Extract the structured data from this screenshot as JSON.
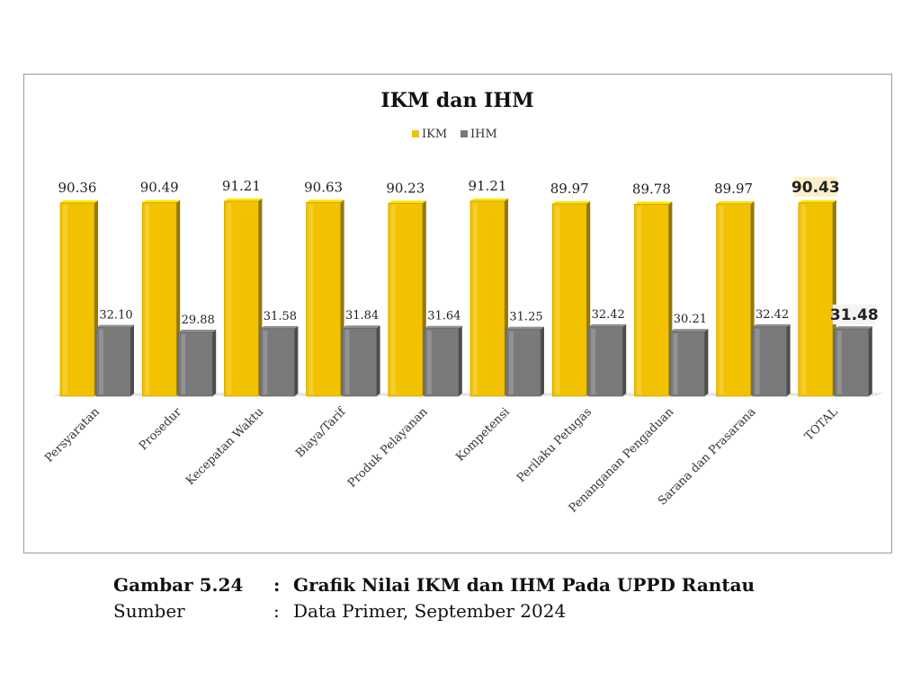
{
  "chart_data": {
    "type": "bar",
    "title": "IKM dan IHM",
    "categories": [
      "Persyaratan",
      "Prosedur",
      "Kecepatan Waktu",
      "Biaya/Tarif",
      "Produk Pelayanan",
      "Kompetensi",
      "Perilaku Petugas",
      "Penanganan Pengaduan",
      "Sarana dan Prasarana",
      "TOTAL"
    ],
    "series": [
      {
        "name": "IKM",
        "values": [
          90.36,
          90.49,
          91.21,
          90.63,
          90.23,
          91.21,
          89.97,
          89.78,
          89.97,
          90.43
        ],
        "labels": [
          "90.36",
          "90.49",
          "91.21",
          "90.63",
          "90.23",
          "91.21",
          "89.97",
          "89.78",
          "89.97",
          "90.43"
        ],
        "color": "#f2c200"
      },
      {
        "name": "IHM",
        "values": [
          32.1,
          29.88,
          31.58,
          31.84,
          31.64,
          31.25,
          32.42,
          30.21,
          32.42,
          31.48
        ],
        "labels": [
          "32.10",
          "29.88",
          "31.58",
          "31.84",
          "31.64",
          "31.25",
          "32.42",
          "30.21",
          "32.42",
          "31.48"
        ],
        "color": "#7a7a7a"
      }
    ],
    "ylim": [
      0,
      100
    ],
    "grid": false,
    "legend": "top-center",
    "highlight_category": "TOTAL",
    "highlight_label_bg": "#fdf0c8"
  },
  "caption": {
    "figure_key": "Gambar 5.24",
    "separator": ":",
    "figure_text": "Grafik Nilai IKM dan IHM Pada UPPD Rantau",
    "source_key": "Sumber",
    "source_text": "Data Primer, September 2024"
  }
}
